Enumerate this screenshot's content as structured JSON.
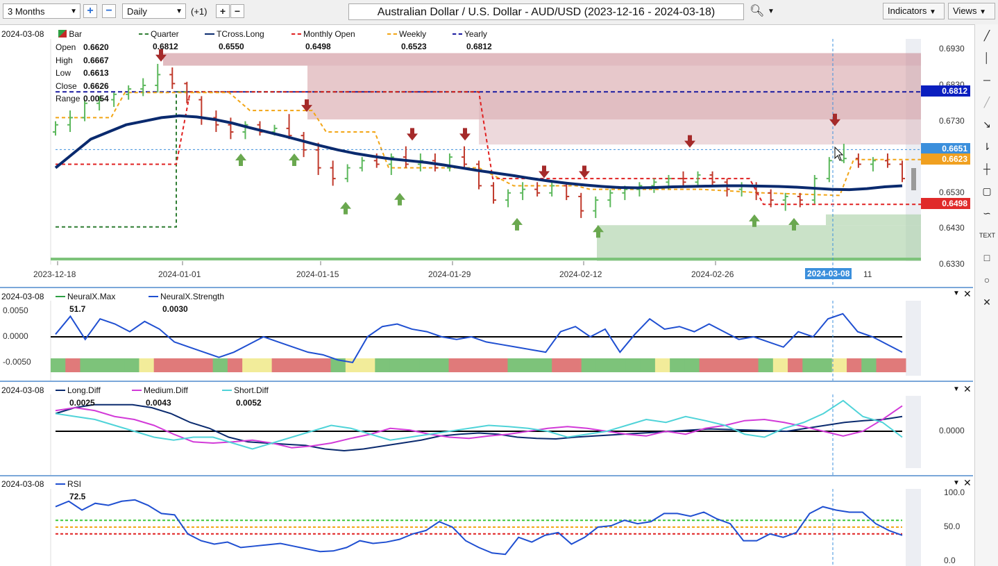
{
  "toolbar": {
    "period": "3 Months",
    "interval": "Daily",
    "offset": "(+1)",
    "title": "Australian Dollar / U.S. Dollar - AUD/USD (2023-12-16 - 2024-03-18)",
    "indicators_label": "Indicators",
    "views_label": "Views",
    "icons": [
      "plus-icon",
      "minus-icon",
      "plus-icon",
      "minus-icon",
      "search-icon",
      "chevron-down-icon"
    ]
  },
  "price_panel": {
    "date": "2024-03-08",
    "series_label": "Bar",
    "legend": [
      {
        "name": "Quarter",
        "value": "0.6812",
        "color": "#2e7d32",
        "style": "dashed"
      },
      {
        "name": "TCross.Long",
        "value": "0.6550",
        "color": "#0a2a6e",
        "style": "solid"
      },
      {
        "name": "Monthly Open",
        "value": "0.6498",
        "color": "#e02020",
        "style": "dashed"
      },
      {
        "name": "Weekly",
        "value": "0.6523",
        "color": "#f2a515",
        "style": "dashed"
      },
      {
        "name": "Yearly",
        "value": "0.6812",
        "color": "#1a1aa0",
        "style": "dashed"
      }
    ],
    "ohlc": [
      {
        "k": "Open",
        "v": "0.6620"
      },
      {
        "k": "High",
        "v": "0.6667"
      },
      {
        "k": "Low",
        "v": "0.6613"
      },
      {
        "k": "Close",
        "v": "0.6626"
      },
      {
        "k": "Range",
        "v": "0.0054"
      }
    ],
    "y_ticks": [
      "0.6930",
      "0.6830",
      "0.6730",
      "0.6630",
      "0.6530",
      "0.6430",
      "0.6330"
    ],
    "price_tags": [
      {
        "value": "0.6812",
        "color": "#0b1fbf"
      },
      {
        "value": "0.6651",
        "color": "#3b8fdc"
      },
      {
        "value": "0.6623",
        "color": "#f0a020"
      },
      {
        "value": "0.6498",
        "color": "#e02a2a"
      }
    ],
    "x_ticks": [
      "2023-12-18",
      "2024-01-01",
      "2024-01-15",
      "2024-01-29",
      "2024-02-12",
      "2024-02-26"
    ],
    "crosshair_date": "2024-03-08",
    "crosshair_extra": "11"
  },
  "chart_data": [
    {
      "type": "bar",
      "title": "",
      "x_start": "2023-12-18",
      "x_end": "2024-03-15",
      "ylim": [
        0.633,
        0.695
      ],
      "series": [
        {
          "name": "Bar",
          "values": [
            [
              0.67,
              0.673,
              0.669,
              0.672
            ],
            [
              0.672,
              0.676,
              0.67,
              0.674
            ],
            [
              0.674,
              0.679,
              0.673,
              0.678
            ],
            [
              0.678,
              0.68,
              0.676,
              0.679
            ],
            [
              0.679,
              0.681,
              0.677,
              0.6805
            ],
            [
              0.6805,
              0.683,
              0.679,
              0.682
            ],
            [
              0.682,
              0.685,
              0.68,
              0.683
            ],
            [
              0.683,
              0.689,
              0.681,
              0.686
            ],
            [
              0.686,
              0.688,
              0.682,
              0.6835
            ],
            [
              0.6835,
              0.684,
              0.678,
              0.679
            ],
            [
              0.679,
              0.68,
              0.672,
              0.674
            ],
            [
              0.674,
              0.676,
              0.67,
              0.672
            ],
            [
              0.672,
              0.674,
              0.668,
              0.67
            ],
            [
              0.67,
              0.673,
              0.668,
              0.672
            ],
            [
              0.672,
              0.673,
              0.669,
              0.67
            ],
            [
              0.67,
              0.672,
              0.669,
              0.671
            ],
            [
              0.671,
              0.675,
              0.668,
              0.669
            ],
            [
              0.669,
              0.67,
              0.663,
              0.665
            ],
            [
              0.665,
              0.667,
              0.658,
              0.66
            ],
            [
              0.66,
              0.662,
              0.655,
              0.657
            ],
            [
              0.657,
              0.661,
              0.656,
              0.66
            ],
            [
              0.66,
              0.663,
              0.659,
              0.662
            ],
            [
              0.662,
              0.664,
              0.66,
              0.661
            ],
            [
              0.661,
              0.664,
              0.658,
              0.663
            ],
            [
              0.663,
              0.666,
              0.66,
              0.661
            ],
            [
              0.661,
              0.664,
              0.659,
              0.662
            ],
            [
              0.662,
              0.664,
              0.659,
              0.66
            ],
            [
              0.66,
              0.664,
              0.659,
              0.663
            ],
            [
              0.663,
              0.666,
              0.66,
              0.661
            ],
            [
              0.661,
              0.662,
              0.654,
              0.655
            ],
            [
              0.655,
              0.656,
              0.65,
              0.651
            ],
            [
              0.651,
              0.654,
              0.649,
              0.653
            ],
            [
              0.653,
              0.656,
              0.651,
              0.654
            ],
            [
              0.654,
              0.656,
              0.652,
              0.653
            ],
            [
              0.653,
              0.656,
              0.652,
              0.655
            ],
            [
              0.655,
              0.656,
              0.651,
              0.652
            ],
            [
              0.652,
              0.653,
              0.646,
              0.648
            ],
            [
              0.648,
              0.652,
              0.646,
              0.651
            ],
            [
              0.651,
              0.654,
              0.649,
              0.653
            ],
            [
              0.653,
              0.655,
              0.651,
              0.654
            ],
            [
              0.654,
              0.656,
              0.652,
              0.655
            ],
            [
              0.655,
              0.657,
              0.653,
              0.656
            ],
            [
              0.656,
              0.658,
              0.654,
              0.657
            ],
            [
              0.657,
              0.659,
              0.655,
              0.656
            ],
            [
              0.656,
              0.659,
              0.655,
              0.658
            ],
            [
              0.658,
              0.659,
              0.655,
              0.656
            ],
            [
              0.656,
              0.657,
              0.652,
              0.654
            ],
            [
              0.654,
              0.656,
              0.652,
              0.655
            ],
            [
              0.655,
              0.656,
              0.651,
              0.653
            ],
            [
              0.653,
              0.654,
              0.649,
              0.651
            ],
            [
              0.651,
              0.653,
              0.648,
              0.652
            ],
            [
              0.652,
              0.653,
              0.649,
              0.651
            ],
            [
              0.651,
              0.658,
              0.65,
              0.657
            ],
            [
              0.657,
              0.663,
              0.656,
              0.662
            ],
            [
              0.662,
              0.6667,
              0.6613,
              0.6626
            ],
            [
              0.6626,
              0.664,
              0.66,
              0.661
            ],
            [
              0.661,
              0.663,
              0.659,
              0.662
            ],
            [
              0.662,
              0.664,
              0.66,
              0.661
            ],
            [
              0.661,
              0.662,
              0.656,
              0.657
            ]
          ]
        },
        {
          "name": "TCross.Long",
          "values": [
            0.66,
            0.664,
            0.668,
            0.67,
            0.672,
            0.673,
            0.674,
            0.6745,
            0.6742,
            0.6735,
            0.6725,
            0.6712,
            0.67,
            0.6688,
            0.6675,
            0.6662,
            0.665,
            0.664,
            0.6632,
            0.6625,
            0.662,
            0.6615,
            0.6608,
            0.66,
            0.6592,
            0.6585,
            0.6578,
            0.657,
            0.6563,
            0.6557,
            0.6552,
            0.6548,
            0.6545,
            0.6544,
            0.6545,
            0.6547,
            0.6548,
            0.6549,
            0.655,
            0.655,
            0.6549,
            0.6548,
            0.6546,
            0.6543,
            0.654,
            0.6539,
            0.6542,
            0.6547,
            0.655
          ]
        }
      ],
      "reference_levels": [
        {
          "name": "Yearly",
          "value": 0.6812
        },
        {
          "name": "Quarter",
          "value": 0.6812
        },
        {
          "name": "Monthly Open",
          "value": 0.6498
        },
        {
          "name": "Weekly",
          "value": 0.6523
        }
      ]
    },
    {
      "type": "line",
      "title": "",
      "ylim": [
        -0.0065,
        0.0065
      ],
      "series": [
        {
          "name": "NeuralX.Strength",
          "values": [
            0.0005,
            0.004,
            -0.0005,
            0.0035,
            0.0025,
            0.001,
            0.003,
            0.0015,
            -0.001,
            -0.002,
            -0.003,
            -0.004,
            -0.003,
            -0.0015,
            0.0,
            -0.001,
            -0.002,
            -0.003,
            -0.0035,
            -0.0045,
            -0.005,
            0.0,
            0.002,
            0.0025,
            0.0015,
            0.001,
            0.0,
            -0.0005,
            0.0,
            -0.001,
            -0.0015,
            -0.002,
            -0.0025,
            -0.003,
            0.001,
            0.002,
            0.0,
            0.0015,
            -0.003,
            0.0005,
            0.0035,
            0.0015,
            0.002,
            0.001,
            0.0025,
            0.001,
            -0.0005,
            0.0,
            -0.001,
            -0.002,
            0.001,
            0.0,
            0.0035,
            0.0045,
            0.001,
            0.0,
            -0.0015,
            -0.003
          ]
        }
      ],
      "legend": [
        {
          "name": "NeuralX.Max",
          "value": "51.7"
        },
        {
          "name": "NeuralX.Strength",
          "value": "0.0030"
        }
      ],
      "y_ticks": [
        "0.0050",
        "0.0000",
        "-0.0050"
      ],
      "color_band": [
        "green",
        "red",
        "green",
        "green",
        "green",
        "green",
        "yellow",
        "red",
        "red",
        "red",
        "red",
        "green",
        "red",
        "yellow",
        "yellow",
        "red",
        "red",
        "red",
        "red",
        "green",
        "yellow",
        "yellow",
        "green",
        "green",
        "green",
        "green",
        "green",
        "red",
        "red",
        "red",
        "red",
        "green",
        "green",
        "green",
        "red",
        "red",
        "green",
        "green",
        "green",
        "green",
        "green",
        "yellow",
        "green",
        "green",
        "red",
        "red",
        "red",
        "red",
        "green",
        "yellow",
        "red",
        "green",
        "green",
        "yellow",
        "red",
        "green",
        "red",
        "red"
      ]
    },
    {
      "type": "line",
      "title": "",
      "ylim": [
        -0.006,
        0.006
      ],
      "series": [
        {
          "name": "Long.Diff",
          "values": [
            0.003,
            0.004,
            0.0045,
            0.0045,
            0.0045,
            0.004,
            0.003,
            0.0015,
            0.0005,
            -0.001,
            -0.0018,
            -0.002,
            -0.0022,
            -0.0024,
            -0.003,
            -0.0033,
            -0.003,
            -0.0025,
            -0.002,
            -0.0015,
            -0.0008,
            -0.0005,
            -0.0003,
            -0.0005,
            -0.001,
            -0.0012,
            -0.0013,
            -0.001,
            -0.0008,
            -0.0006,
            -0.0004,
            -0.0002,
            0.0,
            0.0002,
            0.0004,
            0.0003,
            0.0002,
            0.0001,
            0.0,
            0.0005,
            0.001,
            0.0015,
            0.0018,
            0.002,
            0.0025
          ]
        },
        {
          "name": "Medium.Diff",
          "values": [
            0.0035,
            0.004,
            0.0035,
            0.0025,
            0.002,
            0.001,
            -0.0005,
            -0.0018,
            -0.002,
            -0.0018,
            -0.0015,
            -0.002,
            -0.0028,
            -0.0025,
            -0.002,
            -0.0012,
            -0.0005,
            0.0005,
            0.0002,
            -0.0005,
            -0.001,
            -0.0012,
            -0.0008,
            -0.0005,
            0.0,
            0.0005,
            0.0008,
            0.0005,
            0.0,
            -0.0005,
            -0.0008,
            0.0,
            -0.0005,
            0.0005,
            0.001,
            0.0018,
            0.002,
            0.0015,
            0.0008,
            0.0,
            -0.0008,
            0.0,
            0.002,
            0.0043
          ]
        },
        {
          "name": "Short.Diff",
          "values": [
            0.003,
            0.0025,
            0.002,
            0.001,
            0.0,
            -0.001,
            -0.0015,
            -0.001,
            -0.001,
            -0.002,
            -0.003,
            -0.002,
            -0.001,
            0.0,
            0.001,
            0.0005,
            -0.0005,
            -0.0015,
            -0.001,
            -0.0005,
            0.0,
            0.0005,
            0.001,
            0.0008,
            0.0005,
            0.0,
            -0.001,
            -0.0005,
            0.0,
            0.001,
            0.002,
            0.0015,
            0.0025,
            0.0018,
            0.001,
            -0.0005,
            -0.001,
            0.0005,
            0.0015,
            0.003,
            0.0052,
            0.0025,
            0.0015,
            -0.001
          ]
        }
      ],
      "legend": [
        {
          "name": "Long.Diff",
          "value": "0.0025"
        },
        {
          "name": "Medium.Diff",
          "value": "0.0043"
        },
        {
          "name": "Short.Diff",
          "value": "0.0052"
        }
      ],
      "y_ticks": [
        "0.0000"
      ]
    },
    {
      "type": "line",
      "title": "",
      "ylim": [
        0,
        100
      ],
      "series": [
        {
          "name": "RSI",
          "values": [
            80,
            88,
            75,
            85,
            82,
            88,
            90,
            82,
            70,
            68,
            40,
            30,
            25,
            28,
            20,
            22,
            24,
            26,
            22,
            18,
            14,
            15,
            20,
            30,
            26,
            28,
            32,
            40,
            45,
            58,
            50,
            30,
            20,
            12,
            10,
            35,
            28,
            38,
            42,
            25,
            35,
            50,
            52,
            60,
            55,
            58,
            70,
            70,
            66,
            72,
            62,
            55,
            30,
            30,
            40,
            35,
            42,
            70,
            80,
            75,
            72,
            72,
            55,
            45,
            38
          ]
        }
      ],
      "legend": [
        {
          "name": "RSI",
          "value": "72.5"
        }
      ],
      "y_ticks": [
        "100.0",
        "50.0",
        "0.0"
      ],
      "levels": [
        60,
        50,
        40
      ]
    }
  ],
  "right_tools": [
    "line-draw-icon",
    "vertical-line-icon",
    "horizontal-line-icon",
    "ray-icon",
    "trend-icon",
    "fib-icon",
    "crosshair-icon",
    "comment-icon",
    "wave-icon",
    "text-icon",
    "rectangle-icon",
    "circle-icon",
    "close-icon"
  ]
}
